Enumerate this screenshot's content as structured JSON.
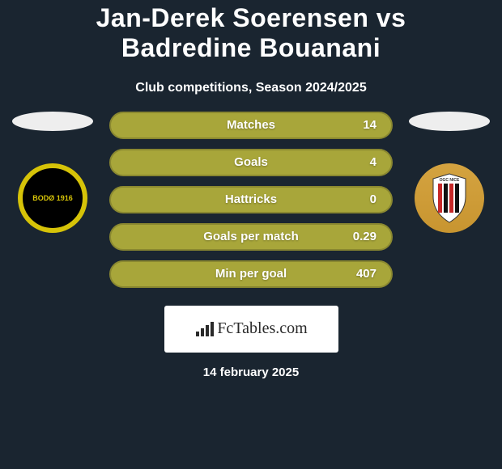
{
  "title": "Jan-Derek Soerensen vs Badredine Bouanani",
  "subtitle": "Club competitions, Season 2024/2025",
  "colors": {
    "background": "#1a2530",
    "stat_row_fill": "#a8a63a",
    "stat_row_border": "#8a8830",
    "ellipse_left": "#eeeeee",
    "ellipse_right": "#eeeeee",
    "text": "#ffffff"
  },
  "stats": [
    {
      "label": "Matches",
      "value": "14"
    },
    {
      "label": "Goals",
      "value": "4"
    },
    {
      "label": "Hattricks",
      "value": "0"
    },
    {
      "label": "Goals per match",
      "value": "0.29"
    },
    {
      "label": "Min per goal",
      "value": "407"
    }
  ],
  "logo_text": "FcTables.com",
  "footer_date": "14 february 2025",
  "badges": {
    "left": {
      "label": "BODØ 1916"
    },
    "right": {
      "label": "OGC NICE"
    }
  }
}
